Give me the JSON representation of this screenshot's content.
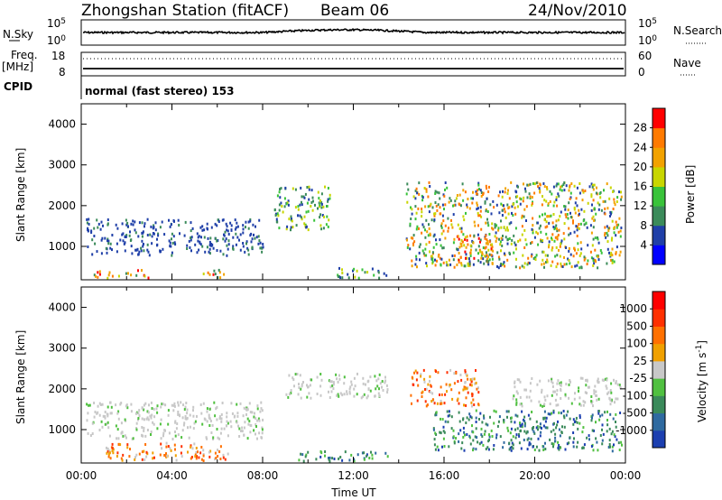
{
  "header": {
    "station": "Zhongshan Station (fitACF)",
    "beam": "Beam 06",
    "date": "24/Nov/2010"
  },
  "side_labels": {
    "nsky": "N.Sky",
    "freq_top": "Freq.",
    "freq_unit": "[MHz]",
    "cpid": "CPID",
    "nsearch": "N.Search",
    "nave": "Nave"
  },
  "scan_panel": {
    "left_ticks": [
      "10^5",
      "10^0"
    ],
    "right_ticks": [
      "10^5",
      "10^0"
    ]
  },
  "freq_panel": {
    "left_ticks": [
      "18",
      "8"
    ],
    "right_ticks": [
      "60",
      "0"
    ]
  },
  "cpid_text": "normal (fast stereo) 153",
  "chart_data": [
    {
      "type": "heatmap",
      "title": "",
      "ylabel": "Slant Range [km]",
      "xlabel": "",
      "ylim": [
        180,
        4500
      ],
      "yticks": [
        "1000",
        "2000",
        "3000",
        "4000"
      ],
      "colorbar": {
        "label": "Power [dB]",
        "ticks": [
          "28",
          "24",
          "20",
          "16",
          "12",
          "8",
          "4"
        ],
        "colors": [
          "#0000ff",
          "#1f3fa8",
          "#3b8b5a",
          "#39c33a",
          "#c8d600",
          "#f2a200",
          "#ff7a00",
          "#ff0000"
        ]
      },
      "echo_regions": [
        {
          "t0": 0.2,
          "t1": 8.0,
          "r0": 800,
          "r1": 1700,
          "level": "low"
        },
        {
          "t0": 0.5,
          "t1": 3.0,
          "r0": 250,
          "r1": 450,
          "level": "high"
        },
        {
          "t0": 5.2,
          "t1": 6.3,
          "r0": 250,
          "r1": 500,
          "level": "high"
        },
        {
          "t0": 8.5,
          "t1": 11.0,
          "r0": 1400,
          "r1": 2500,
          "level": "mid"
        },
        {
          "t0": 11.0,
          "t1": 13.5,
          "r0": 250,
          "r1": 500,
          "level": "mid"
        },
        {
          "t0": 14.3,
          "t1": 23.8,
          "r0": 500,
          "r1": 2600,
          "level": "mixed"
        },
        {
          "t0": 16.5,
          "t1": 18.5,
          "r0": 600,
          "r1": 1300,
          "level": "high"
        }
      ]
    },
    {
      "type": "heatmap",
      "title": "",
      "ylabel": "Slant Range [km]",
      "xlabel": "Time UT",
      "ylim": [
        180,
        4500
      ],
      "yticks": [
        "1000",
        "2000",
        "3000",
        "4000"
      ],
      "xticks": [
        "00:00",
        "04:00",
        "08:00",
        "12:00",
        "16:00",
        "20:00",
        "00:00"
      ],
      "colorbar": {
        "label": "Velocity [m s^-1]",
        "ticks": [
          "1000",
          "500",
          "100",
          "25",
          "-25",
          "-100",
          "-500",
          "-1000"
        ],
        "colors": [
          "#1c3fb0",
          "#2f6aa0",
          "#3a8a5a",
          "#50c040",
          "#c8c8c8",
          "#f0a000",
          "#ff7000",
          "#ff3000",
          "#ff0000"
        ]
      },
      "echo_regions": [
        {
          "t0": 0.2,
          "t1": 8.0,
          "r0": 800,
          "r1": 1700,
          "level": "ground"
        },
        {
          "t0": 1.0,
          "t1": 6.5,
          "r0": 250,
          "r1": 700,
          "level": "negative"
        },
        {
          "t0": 9.0,
          "t1": 13.5,
          "r0": 1800,
          "r1": 2400,
          "level": "ground"
        },
        {
          "t0": 9.5,
          "t1": 13.5,
          "r0": 250,
          "r1": 500,
          "level": "positive"
        },
        {
          "t0": 14.5,
          "t1": 17.5,
          "r0": 1600,
          "r1": 2500,
          "level": "negative"
        },
        {
          "t0": 15.5,
          "t1": 23.8,
          "r0": 500,
          "r1": 1500,
          "level": "positive"
        },
        {
          "t0": 19.0,
          "t1": 23.8,
          "r0": 1600,
          "r1": 2300,
          "level": "ground"
        }
      ]
    }
  ]
}
